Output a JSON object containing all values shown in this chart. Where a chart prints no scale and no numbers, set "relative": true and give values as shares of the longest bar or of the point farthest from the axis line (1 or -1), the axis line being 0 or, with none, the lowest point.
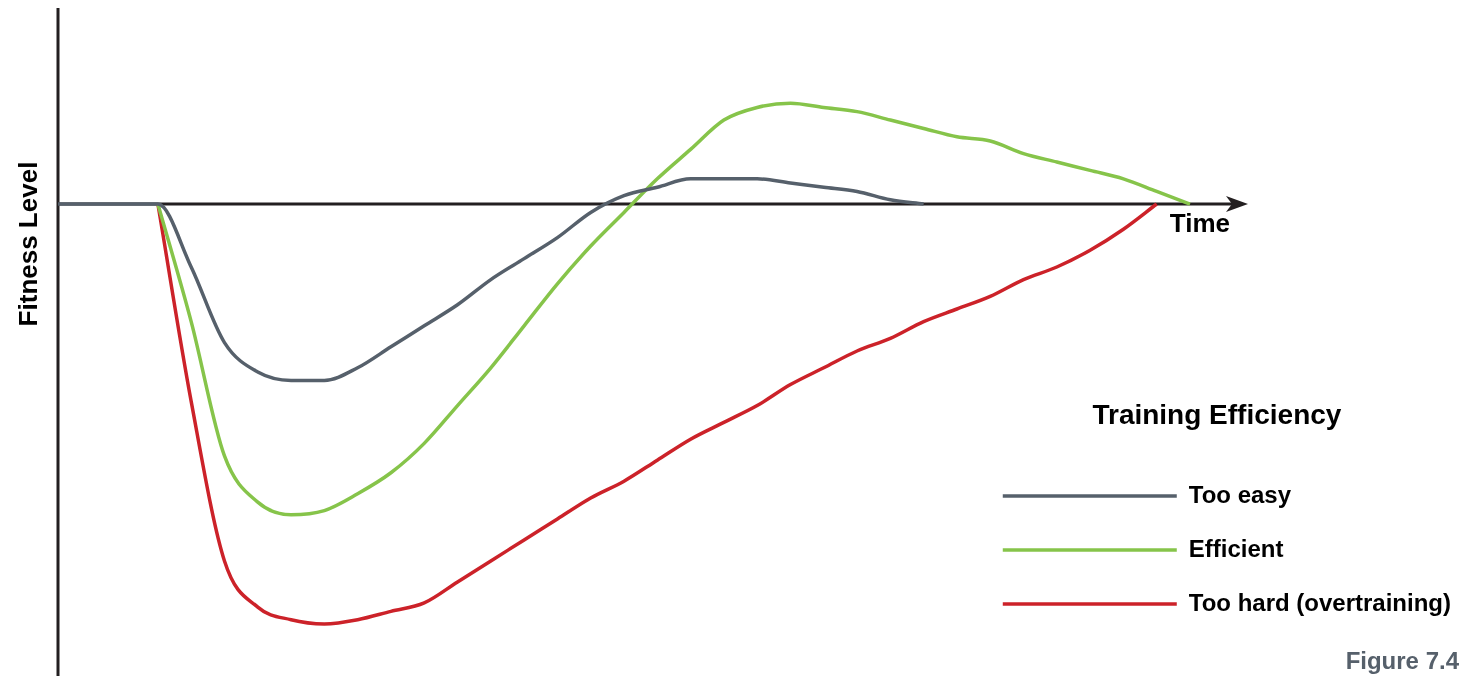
{
  "chart_data": {
    "type": "line",
    "relative": true,
    "xlabel": "Time",
    "ylabel": "Fitness Level",
    "legend_title": "Training Efficiency",
    "legend": "bottom right",
    "marker": "none",
    "grid": false,
    "annotations": [
      "Figure 7.4"
    ],
    "categories": [
      null,
      null,
      null,
      null,
      null,
      null,
      null,
      null,
      null,
      null,
      null,
      null,
      null,
      null,
      null,
      null,
      null,
      null,
      null,
      null,
      null,
      null,
      null,
      null,
      null,
      null,
      null,
      null,
      null,
      null,
      null,
      null,
      null,
      null,
      null
    ],
    "series": [
      {
        "name": "Too easy",
        "color": "#56606b",
        "values": [
          0,
          0,
          0,
          0,
          -0.15,
          -0.33,
          -0.4,
          -0.42,
          -0.42,
          -0.39,
          -0.34,
          -0.29,
          -0.24,
          -0.18,
          -0.13,
          -0.08,
          -0.02,
          0.02,
          0.04,
          0.06,
          0.06,
          0.06,
          0.05,
          0.04,
          0.03,
          0.01,
          0,
          null,
          null,
          null,
          null,
          null,
          null,
          null,
          null
        ]
      },
      {
        "name": "Efficient",
        "color": "#86c44a",
        "values": [
          null,
          null,
          null,
          0,
          -0.28,
          -0.6,
          -0.71,
          -0.74,
          -0.73,
          -0.69,
          -0.64,
          -0.57,
          -0.48,
          -0.39,
          -0.29,
          -0.19,
          -0.1,
          -0.02,
          0.06,
          0.13,
          0.2,
          0.23,
          0.24,
          0.23,
          0.22,
          0.2,
          0.18,
          0.16,
          0.15,
          0.12,
          0.1,
          0.08,
          0.06,
          0.03,
          0
        ]
      },
      {
        "name": "Too hard (overtraining)",
        "color": "#cc2229",
        "values": [
          null,
          null,
          null,
          0,
          -0.47,
          -0.85,
          -0.96,
          -0.99,
          -1,
          -0.99,
          -0.97,
          -0.95,
          -0.9,
          -0.85,
          -0.8,
          -0.75,
          -0.7,
          -0.66,
          -0.61,
          -0.56,
          -0.52,
          -0.48,
          -0.43,
          -0.39,
          -0.35,
          -0.32,
          -0.28,
          -0.25,
          -0.22,
          -0.18,
          -0.15,
          -0.11,
          -0.06,
          0,
          null
        ]
      }
    ]
  }
}
